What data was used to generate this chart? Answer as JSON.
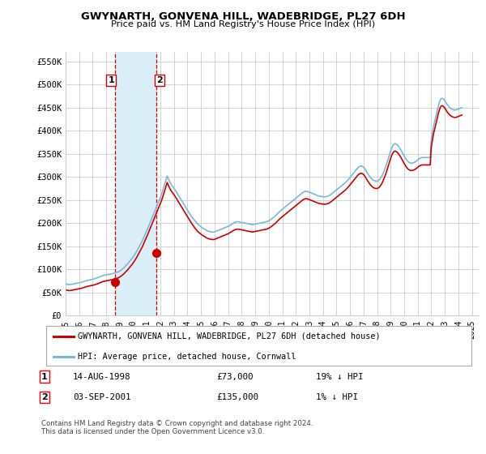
{
  "title": "GWYNARTH, GONVENA HILL, WADEBRIDGE, PL27 6DH",
  "subtitle": "Price paid vs. HM Land Registry's House Price Index (HPI)",
  "legend_line1": "GWYNARTH, GONVENA HILL, WADEBRIDGE, PL27 6DH (detached house)",
  "legend_line2": "HPI: Average price, detached house, Cornwall",
  "transaction1_date": "14-AUG-1998",
  "transaction1_price": "£73,000",
  "transaction1_hpi": "19% ↓ HPI",
  "transaction1_year": 1998.62,
  "transaction1_value": 73000,
  "transaction2_date": "03-SEP-2001",
  "transaction2_price": "£135,000",
  "transaction2_hpi": "1% ↓ HPI",
  "transaction2_year": 2001.67,
  "transaction2_value": 135000,
  "footer": "Contains HM Land Registry data © Crown copyright and database right 2024.\nThis data is licensed under the Open Government Licence v3.0.",
  "ylim": [
    0,
    570000
  ],
  "xlim_min": 1995.0,
  "xlim_max": 2025.5,
  "yticks": [
    0,
    50000,
    100000,
    150000,
    200000,
    250000,
    300000,
    350000,
    400000,
    450000,
    500000,
    550000
  ],
  "ytick_labels": [
    "£0",
    "£50K",
    "£100K",
    "£150K",
    "£200K",
    "£250K",
    "£300K",
    "£350K",
    "£400K",
    "£450K",
    "£500K",
    "£550K"
  ],
  "xticks": [
    1995,
    1996,
    1997,
    1998,
    1999,
    2000,
    2001,
    2002,
    2003,
    2004,
    2005,
    2006,
    2007,
    2008,
    2009,
    2010,
    2011,
    2012,
    2013,
    2014,
    2015,
    2016,
    2017,
    2018,
    2019,
    2020,
    2021,
    2022,
    2023,
    2024,
    2025
  ],
  "hpi_color": "#7ab8d9",
  "price_color": "#cc0000",
  "marker_color": "#cc0000",
  "vline_color": "#cc0000",
  "highlight_color": "#daeef7",
  "background_color": "#ffffff",
  "grid_color": "#cccccc",
  "hpi_years": [
    1995.083,
    1995.167,
    1995.25,
    1995.333,
    1995.417,
    1995.5,
    1995.583,
    1995.667,
    1995.75,
    1995.833,
    1995.917,
    1996.0,
    1996.083,
    1996.167,
    1996.25,
    1996.333,
    1996.417,
    1996.5,
    1996.583,
    1996.667,
    1996.75,
    1996.833,
    1996.917,
    1997.0,
    1997.083,
    1997.167,
    1997.25,
    1997.333,
    1997.417,
    1997.5,
    1997.583,
    1997.667,
    1997.75,
    1997.833,
    1997.917,
    1998.0,
    1998.083,
    1998.167,
    1998.25,
    1998.333,
    1998.417,
    1998.5,
    1998.583,
    1998.667,
    1998.75,
    1998.833,
    1998.917,
    1999.0,
    1999.083,
    1999.167,
    1999.25,
    1999.333,
    1999.417,
    1999.5,
    1999.583,
    1999.667,
    1999.75,
    1999.833,
    1999.917,
    2000.0,
    2000.083,
    2000.167,
    2000.25,
    2000.333,
    2000.417,
    2000.5,
    2000.583,
    2000.667,
    2000.75,
    2000.833,
    2000.917,
    2001.0,
    2001.083,
    2001.167,
    2001.25,
    2001.333,
    2001.417,
    2001.5,
    2001.583,
    2001.667,
    2001.75,
    2001.833,
    2001.917,
    2002.0,
    2002.083,
    2002.167,
    2002.25,
    2002.333,
    2002.417,
    2002.5,
    2002.583,
    2002.667,
    2002.75,
    2002.833,
    2002.917,
    2003.0,
    2003.083,
    2003.167,
    2003.25,
    2003.333,
    2003.417,
    2003.5,
    2003.583,
    2003.667,
    2003.75,
    2003.833,
    2003.917,
    2004.0,
    2004.083,
    2004.167,
    2004.25,
    2004.333,
    2004.417,
    2004.5,
    2004.583,
    2004.667,
    2004.75,
    2004.833,
    2004.917,
    2005.0,
    2005.083,
    2005.167,
    2005.25,
    2005.333,
    2005.417,
    2005.5,
    2005.583,
    2005.667,
    2005.75,
    2005.833,
    2005.917,
    2006.0,
    2006.083,
    2006.167,
    2006.25,
    2006.333,
    2006.417,
    2006.5,
    2006.583,
    2006.667,
    2006.75,
    2006.833,
    2006.917,
    2007.0,
    2007.083,
    2007.167,
    2007.25,
    2007.333,
    2007.417,
    2007.5,
    2007.583,
    2007.667,
    2007.75,
    2007.833,
    2007.917,
    2008.0,
    2008.083,
    2008.167,
    2008.25,
    2008.333,
    2008.417,
    2008.5,
    2008.583,
    2008.667,
    2008.75,
    2008.833,
    2008.917,
    2009.0,
    2009.083,
    2009.167,
    2009.25,
    2009.333,
    2009.417,
    2009.5,
    2009.583,
    2009.667,
    2009.75,
    2009.833,
    2009.917,
    2010.0,
    2010.083,
    2010.167,
    2010.25,
    2010.333,
    2010.417,
    2010.5,
    2010.583,
    2010.667,
    2010.75,
    2010.833,
    2010.917,
    2011.0,
    2011.083,
    2011.167,
    2011.25,
    2011.333,
    2011.417,
    2011.5,
    2011.583,
    2011.667,
    2011.75,
    2011.833,
    2011.917,
    2012.0,
    2012.083,
    2012.167,
    2012.25,
    2012.333,
    2012.417,
    2012.5,
    2012.583,
    2012.667,
    2012.75,
    2012.833,
    2012.917,
    2013.0,
    2013.083,
    2013.167,
    2013.25,
    2013.333,
    2013.417,
    2013.5,
    2013.583,
    2013.667,
    2013.75,
    2013.833,
    2013.917,
    2014.0,
    2014.083,
    2014.167,
    2014.25,
    2014.333,
    2014.417,
    2014.5,
    2014.583,
    2014.667,
    2014.75,
    2014.833,
    2014.917,
    2015.0,
    2015.083,
    2015.167,
    2015.25,
    2015.333,
    2015.417,
    2015.5,
    2015.583,
    2015.667,
    2015.75,
    2015.833,
    2015.917,
    2016.0,
    2016.083,
    2016.167,
    2016.25,
    2016.333,
    2016.417,
    2016.5,
    2016.583,
    2016.667,
    2016.75,
    2016.833,
    2016.917,
    2017.0,
    2017.083,
    2017.167,
    2017.25,
    2017.333,
    2017.417,
    2017.5,
    2017.583,
    2017.667,
    2017.75,
    2017.833,
    2017.917,
    2018.0,
    2018.083,
    2018.167,
    2018.25,
    2018.333,
    2018.417,
    2018.5,
    2018.583,
    2018.667,
    2018.75,
    2018.833,
    2018.917,
    2019.0,
    2019.083,
    2019.167,
    2019.25,
    2019.333,
    2019.417,
    2019.5,
    2019.583,
    2019.667,
    2019.75,
    2019.833,
    2019.917,
    2020.0,
    2020.083,
    2020.167,
    2020.25,
    2020.333,
    2020.417,
    2020.5,
    2020.583,
    2020.667,
    2020.75,
    2020.833,
    2020.917,
    2021.0,
    2021.083,
    2021.167,
    2021.25,
    2021.333,
    2021.417,
    2021.5,
    2021.583,
    2021.667,
    2021.75,
    2021.833,
    2021.917,
    2022.0,
    2022.083,
    2022.167,
    2022.25,
    2022.333,
    2022.417,
    2022.5,
    2022.583,
    2022.667,
    2022.75,
    2022.833,
    2022.917,
    2023.0,
    2023.083,
    2023.167,
    2023.25,
    2023.333,
    2023.417,
    2023.5,
    2023.583,
    2023.667,
    2023.75,
    2023.833,
    2023.917,
    2024.0,
    2024.083,
    2024.167,
    2024.25
  ],
  "hpi_values": [
    68000,
    67500,
    67000,
    67200,
    67500,
    68000,
    68500,
    69000,
    69500,
    70000,
    70500,
    71000,
    71500,
    72000,
    72800,
    73500,
    74200,
    75000,
    75800,
    76500,
    77000,
    77500,
    78000,
    78500,
    79000,
    79800,
    80500,
    81500,
    82500,
    83500,
    84500,
    85500,
    86500,
    87000,
    87500,
    88000,
    88500,
    89000,
    89500,
    90000,
    90500,
    91000,
    91800,
    92500,
    93200,
    94000,
    95000,
    96500,
    98000,
    100000,
    102000,
    104500,
    107000,
    109500,
    112000,
    115000,
    118000,
    121000,
    124000,
    127500,
    131000,
    135000,
    139000,
    143500,
    148000,
    152500,
    157000,
    162000,
    167500,
    173000,
    178500,
    184000,
    190000,
    196000,
    202000,
    208000,
    214000,
    220000,
    226000,
    232000,
    238000,
    244000,
    250000,
    256000,
    262000,
    270000,
    278000,
    286000,
    294000,
    302000,
    296000,
    291000,
    286000,
    282000,
    279000,
    275500,
    272000,
    268000,
    264000,
    260000,
    256000,
    252000,
    248000,
    244000,
    240000,
    236000,
    232000,
    228000,
    224000,
    220000,
    216000,
    213000,
    210000,
    207000,
    204000,
    201000,
    198000,
    196000,
    194000,
    192000,
    190000,
    188500,
    187000,
    185500,
    184000,
    183000,
    182000,
    181500,
    181000,
    180500,
    180500,
    181000,
    182000,
    183000,
    184000,
    185000,
    186000,
    187000,
    188000,
    189000,
    190000,
    191000,
    192000,
    193000,
    194500,
    196000,
    197500,
    199000,
    200500,
    201500,
    202500,
    203000,
    203000,
    202500,
    202000,
    201500,
    201000,
    200500,
    200000,
    199500,
    199000,
    198500,
    198000,
    197500,
    197000,
    197000,
    197500,
    198000,
    198500,
    199000,
    199500,
    200000,
    200500,
    201000,
    201500,
    202000,
    202500,
    203000,
    204000,
    205000,
    206500,
    208000,
    210000,
    212000,
    214000,
    216000,
    218500,
    221000,
    223500,
    226000,
    228000,
    230000,
    232000,
    234000,
    236000,
    238000,
    240000,
    242000,
    244000,
    246000,
    248000,
    250000,
    252000,
    254000,
    256000,
    258000,
    260000,
    262000,
    264000,
    266000,
    267500,
    268500,
    269000,
    268500,
    268000,
    267000,
    266000,
    265000,
    264000,
    263000,
    262000,
    261000,
    260000,
    259000,
    258500,
    258000,
    257500,
    257200,
    257000,
    257000,
    257500,
    258000,
    259000,
    260500,
    262000,
    264000,
    266000,
    268000,
    270000,
    272000,
    274000,
    276000,
    278000,
    280000,
    282000,
    284000,
    286000,
    288000,
    290500,
    293000,
    296000,
    299000,
    302000,
    305000,
    308000,
    311000,
    314000,
    317000,
    320000,
    322000,
    323500,
    324000,
    323000,
    321000,
    318000,
    314000,
    310000,
    306000,
    302500,
    299000,
    296500,
    294000,
    292500,
    291500,
    291000,
    291000,
    292000,
    294000,
    297000,
    301000,
    306000,
    312000,
    318000,
    325000,
    333000,
    341000,
    349000,
    356500,
    363000,
    368000,
    371000,
    372000,
    371000,
    369000,
    366000,
    362500,
    358500,
    354000,
    349500,
    345000,
    341000,
    337000,
    334000,
    332000,
    330500,
    330000,
    330000,
    330500,
    331500,
    333000,
    335000,
    337000,
    339000,
    340500,
    341500,
    342000,
    342000,
    342000,
    342000,
    342000,
    342000,
    342000,
    342000,
    381000,
    396000,
    410000,
    420000,
    430000,
    440000,
    451000,
    460000,
    467000,
    470000,
    470000,
    468000,
    465000,
    461000,
    457000,
    454000,
    451000,
    449000,
    447000,
    446000,
    445000,
    445000,
    445000,
    446000,
    447000,
    448000,
    449000,
    450000
  ],
  "price_years": [
    1995.083,
    1995.167,
    1995.25,
    1995.333,
    1995.417,
    1995.5,
    1995.583,
    1995.667,
    1995.75,
    1995.833,
    1995.917,
    1996.0,
    1996.083,
    1996.167,
    1996.25,
    1996.333,
    1996.417,
    1996.5,
    1996.583,
    1996.667,
    1996.75,
    1996.833,
    1996.917,
    1997.0,
    1997.083,
    1997.167,
    1997.25,
    1997.333,
    1997.417,
    1997.5,
    1997.583,
    1997.667,
    1997.75,
    1997.833,
    1997.917,
    1998.0,
    1998.083,
    1998.167,
    1998.25,
    1998.333,
    1998.417,
    1998.5,
    1998.583,
    1998.667,
    1998.75,
    1998.833,
    1998.917,
    1999.0,
    1999.083,
    1999.167,
    1999.25,
    1999.333,
    1999.417,
    1999.5,
    1999.583,
    1999.667,
    1999.75,
    1999.833,
    1999.917,
    2000.0,
    2000.083,
    2000.167,
    2000.25,
    2000.333,
    2000.417,
    2000.5,
    2000.583,
    2000.667,
    2000.75,
    2000.833,
    2000.917,
    2001.0,
    2001.083,
    2001.167,
    2001.25,
    2001.333,
    2001.417,
    2001.5,
    2001.583,
    2001.667,
    2001.75,
    2001.833,
    2001.917,
    2002.0,
    2002.083,
    2002.167,
    2002.25,
    2002.333,
    2002.417,
    2002.5,
    2002.583,
    2002.667,
    2002.75,
    2002.833,
    2002.917,
    2003.0,
    2003.083,
    2003.167,
    2003.25,
    2003.333,
    2003.417,
    2003.5,
    2003.583,
    2003.667,
    2003.75,
    2003.833,
    2003.917,
    2004.0,
    2004.083,
    2004.167,
    2004.25,
    2004.333,
    2004.417,
    2004.5,
    2004.583,
    2004.667,
    2004.75,
    2004.833,
    2004.917,
    2005.0,
    2005.083,
    2005.167,
    2005.25,
    2005.333,
    2005.417,
    2005.5,
    2005.583,
    2005.667,
    2005.75,
    2005.833,
    2005.917,
    2006.0,
    2006.083,
    2006.167,
    2006.25,
    2006.333,
    2006.417,
    2006.5,
    2006.583,
    2006.667,
    2006.75,
    2006.833,
    2006.917,
    2007.0,
    2007.083,
    2007.167,
    2007.25,
    2007.333,
    2007.417,
    2007.5,
    2007.583,
    2007.667,
    2007.75,
    2007.833,
    2007.917,
    2008.0,
    2008.083,
    2008.167,
    2008.25,
    2008.333,
    2008.417,
    2008.5,
    2008.583,
    2008.667,
    2008.75,
    2008.833,
    2008.917,
    2009.0,
    2009.083,
    2009.167,
    2009.25,
    2009.333,
    2009.417,
    2009.5,
    2009.583,
    2009.667,
    2009.75,
    2009.833,
    2009.917,
    2010.0,
    2010.083,
    2010.167,
    2010.25,
    2010.333,
    2010.417,
    2010.5,
    2010.583,
    2010.667,
    2010.75,
    2010.833,
    2010.917,
    2011.0,
    2011.083,
    2011.167,
    2011.25,
    2011.333,
    2011.417,
    2011.5,
    2011.583,
    2011.667,
    2011.75,
    2011.833,
    2011.917,
    2012.0,
    2012.083,
    2012.167,
    2012.25,
    2012.333,
    2012.417,
    2012.5,
    2012.583,
    2012.667,
    2012.75,
    2012.833,
    2012.917,
    2013.0,
    2013.083,
    2013.167,
    2013.25,
    2013.333,
    2013.417,
    2013.5,
    2013.583,
    2013.667,
    2013.75,
    2013.833,
    2013.917,
    2014.0,
    2014.083,
    2014.167,
    2014.25,
    2014.333,
    2014.417,
    2014.5,
    2014.583,
    2014.667,
    2014.75,
    2014.833,
    2014.917,
    2015.0,
    2015.083,
    2015.167,
    2015.25,
    2015.333,
    2015.417,
    2015.5,
    2015.583,
    2015.667,
    2015.75,
    2015.833,
    2015.917,
    2016.0,
    2016.083,
    2016.167,
    2016.25,
    2016.333,
    2016.417,
    2016.5,
    2016.583,
    2016.667,
    2016.75,
    2016.833,
    2016.917,
    2017.0,
    2017.083,
    2017.167,
    2017.25,
    2017.333,
    2017.417,
    2017.5,
    2017.583,
    2017.667,
    2017.75,
    2017.833,
    2017.917,
    2018.0,
    2018.083,
    2018.167,
    2018.25,
    2018.333,
    2018.417,
    2018.5,
    2018.583,
    2018.667,
    2018.75,
    2018.833,
    2018.917,
    2019.0,
    2019.083,
    2019.167,
    2019.25,
    2019.333,
    2019.417,
    2019.5,
    2019.583,
    2019.667,
    2019.75,
    2019.833,
    2019.917,
    2020.0,
    2020.083,
    2020.167,
    2020.25,
    2020.333,
    2020.417,
    2020.5,
    2020.583,
    2020.667,
    2020.75,
    2020.833,
    2020.917,
    2021.0,
    2021.083,
    2021.167,
    2021.25,
    2021.333,
    2021.417,
    2021.5,
    2021.583,
    2021.667,
    2021.75,
    2021.833,
    2021.917,
    2022.0,
    2022.083,
    2022.167,
    2022.25,
    2022.333,
    2022.417,
    2022.5,
    2022.583,
    2022.667,
    2022.75,
    2022.833,
    2022.917,
    2023.0,
    2023.083,
    2023.167,
    2023.25,
    2023.333,
    2023.417,
    2023.5,
    2023.583,
    2023.667,
    2023.75,
    2023.833,
    2023.917,
    2024.0,
    2024.083,
    2024.167,
    2024.25
  ],
  "price_values": [
    55000,
    54500,
    54000,
    54200,
    54500,
    55000,
    55500,
    56000,
    56500,
    57000,
    57500,
    58000,
    58500,
    59000,
    59800,
    60500,
    61200,
    62000,
    62800,
    63500,
    64000,
    64500,
    65000,
    65500,
    66000,
    66800,
    67500,
    68500,
    69500,
    70500,
    71500,
    72500,
    73500,
    74000,
    74500,
    75000,
    75500,
    76000,
    76500,
    77000,
    77500,
    78000,
    78700,
    79400,
    80100,
    81000,
    82000,
    83500,
    85000,
    87000,
    89000,
    91500,
    94000,
    96500,
    99000,
    102000,
    105000,
    108000,
    111000,
    114500,
    118000,
    122000,
    126000,
    130500,
    135000,
    139500,
    144000,
    149000,
    154500,
    160000,
    165500,
    171000,
    177000,
    183000,
    189000,
    195000,
    201000,
    207000,
    213000,
    219000,
    225000,
    231000,
    237000,
    243000,
    249000,
    256500,
    264000,
    272000,
    280000,
    288000,
    282000,
    277000,
    272000,
    268000,
    265000,
    261500,
    258000,
    254000,
    250000,
    246000,
    242000,
    238000,
    234000,
    230000,
    226000,
    222000,
    218000,
    214000,
    210000,
    206000,
    202000,
    198500,
    195000,
    191500,
    188000,
    185000,
    182000,
    180000,
    178000,
    176000,
    174000,
    172500,
    171000,
    169500,
    168000,
    167000,
    166000,
    165500,
    165000,
    164500,
    164500,
    165000,
    166000,
    167000,
    168000,
    169000,
    170000,
    171000,
    172000,
    173000,
    174000,
    175000,
    176000,
    177000,
    178500,
    180000,
    181500,
    183000,
    184500,
    185500,
    186500,
    187000,
    187000,
    186500,
    186000,
    185500,
    185000,
    184500,
    184000,
    183500,
    183000,
    182500,
    182000,
    181500,
    181000,
    181000,
    181500,
    182000,
    182500,
    183000,
    183500,
    184000,
    184500,
    185000,
    185500,
    186000,
    186500,
    187000,
    188000,
    189000,
    190500,
    192000,
    194000,
    196000,
    198000,
    200000,
    202500,
    205000,
    207500,
    210000,
    212000,
    214000,
    216000,
    218000,
    220000,
    222000,
    224000,
    226000,
    228000,
    230000,
    232000,
    234000,
    236000,
    238000,
    240000,
    242000,
    244000,
    246000,
    248000,
    250000,
    251500,
    252500,
    253000,
    252500,
    252000,
    251000,
    250000,
    249000,
    248000,
    247000,
    246000,
    245000,
    244000,
    243000,
    242500,
    242000,
    241500,
    241200,
    241000,
    241000,
    241500,
    242000,
    243000,
    244500,
    246000,
    248000,
    250000,
    252000,
    254000,
    256000,
    258000,
    260000,
    262000,
    264000,
    266000,
    268000,
    270000,
    272000,
    274500,
    277000,
    280000,
    283000,
    286000,
    289000,
    292000,
    295000,
    298000,
    301000,
    304000,
    306000,
    307500,
    308000,
    307000,
    305000,
    302000,
    298000,
    294000,
    290000,
    286500,
    283000,
    280500,
    278000,
    276500,
    275500,
    275000,
    275000,
    276000,
    278000,
    281000,
    285000,
    290000,
    296000,
    302000,
    309000,
    317000,
    325000,
    333000,
    340500,
    347000,
    352000,
    355000,
    356000,
    355000,
    353000,
    350000,
    346500,
    342500,
    338000,
    333500,
    329000,
    325000,
    321000,
    318000,
    316000,
    314500,
    314000,
    314000,
    314500,
    315500,
    317000,
    319000,
    321000,
    323000,
    324500,
    325500,
    326000,
    326000,
    326000,
    326000,
    326000,
    326000,
    326000,
    326000,
    365000,
    380000,
    394000,
    404000,
    414000,
    424000,
    435000,
    444000,
    451000,
    454000,
    454000,
    452000,
    449000,
    445000,
    441000,
    438000,
    435000,
    433000,
    431000,
    430000,
    429000,
    429000,
    429000,
    430000,
    431000,
    432000,
    433000,
    434000
  ]
}
